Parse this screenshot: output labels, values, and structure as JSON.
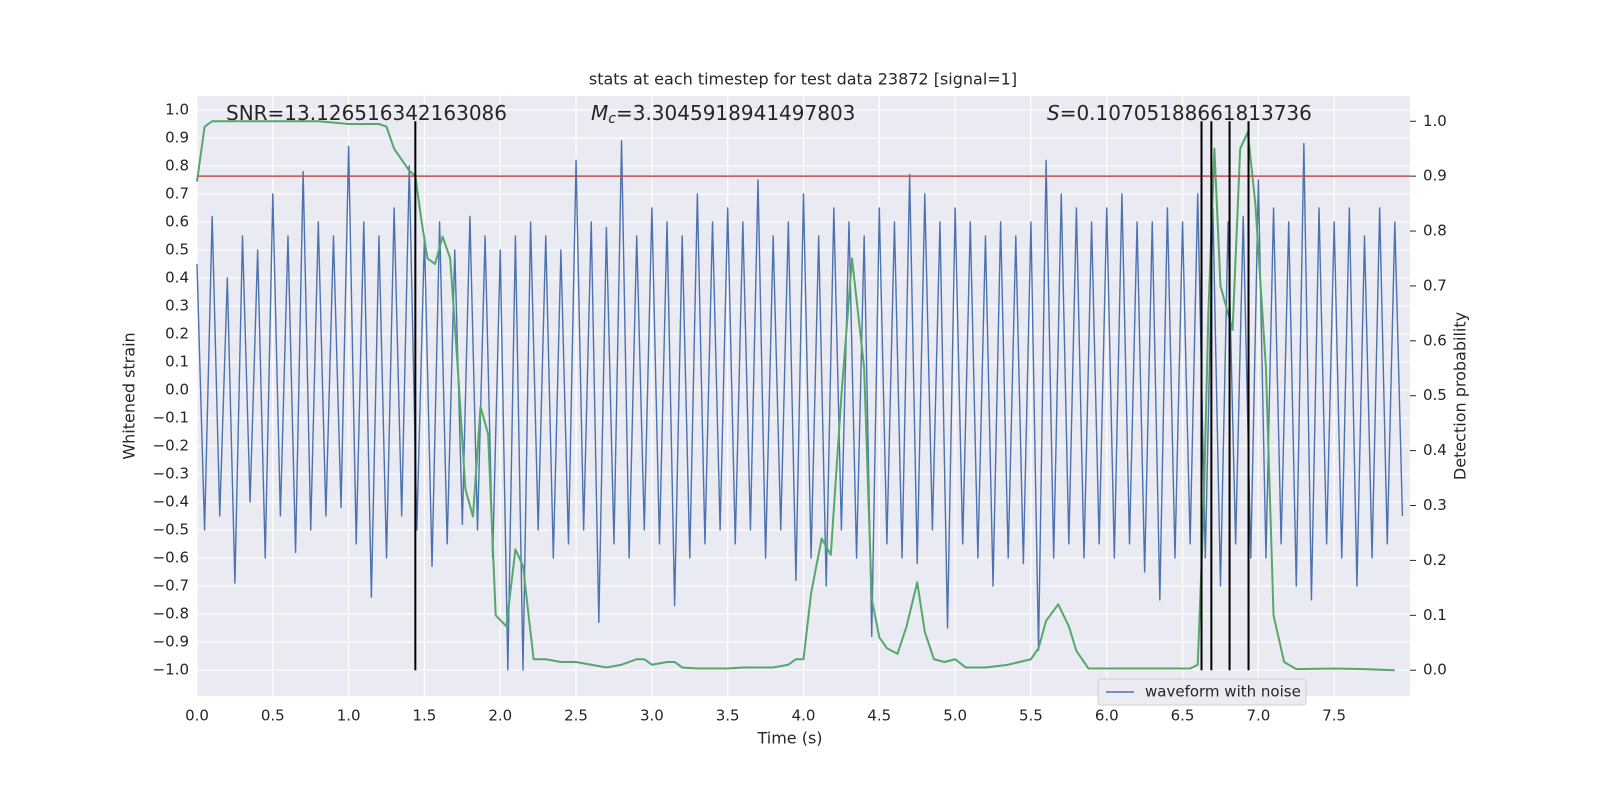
{
  "chart_data": {
    "type": "line",
    "title": "stats at each timestep for test data 23872 [signal=1]",
    "xlabel": "Time (s)",
    "ylabel": "Whitened strain",
    "y2label": "Detection probability",
    "xlim": [
      0,
      8
    ],
    "ylim": [
      -1.093,
      1.05
    ],
    "y2lim": [
      -0.047,
      1.046
    ],
    "xticks": [
      {
        "value": 0,
        "label": "0.0"
      },
      0.5,
      {
        "value": 1,
        "label": "1.0"
      },
      1.5,
      {
        "value": 2,
        "label": "2.0"
      },
      2.5,
      {
        "value": 3,
        "label": "3.0"
      },
      3.5,
      {
        "value": 4,
        "label": "4.0"
      },
      4.5,
      {
        "value": 5,
        "label": "5.0"
      },
      5.5,
      {
        "value": 6,
        "label": "6.0"
      },
      6.5,
      {
        "value": 7,
        "label": "7.0"
      },
      7.5
    ],
    "yticks": [
      {
        "value": -1,
        "label": "−1.0"
      },
      {
        "value": -0.9,
        "label": "−0.9"
      },
      {
        "value": -0.8,
        "label": "−0.8"
      },
      {
        "value": -0.7,
        "label": "−0.7"
      },
      {
        "value": -0.6,
        "label": "−0.6"
      },
      {
        "value": -0.5,
        "label": "−0.5"
      },
      {
        "value": -0.4,
        "label": "−0.4"
      },
      {
        "value": -0.3,
        "label": "−0.3"
      },
      {
        "value": -0.2,
        "label": "−0.2"
      },
      {
        "value": -0.1,
        "label": "−0.1"
      },
      {
        "value": 0,
        "label": "0.0"
      },
      0.1,
      0.2,
      0.3,
      0.4,
      0.5,
      0.6,
      0.7,
      0.8,
      0.9,
      {
        "value": 1,
        "label": "1.0"
      }
    ],
    "y2ticks": [
      {
        "value": 0,
        "label": "0.0"
      },
      0.1,
      0.2,
      0.3,
      0.4,
      0.5,
      0.6,
      0.7,
      0.8,
      0.9,
      {
        "value": 1,
        "label": "1.0"
      }
    ],
    "grid": true,
    "legend": "lower right",
    "annotations": [
      {
        "text": "SNR=13.126516342163086"
      },
      {
        "symbol": "M",
        "subscript": "c",
        "text": "=3.3045918941497803"
      },
      {
        "symbol": "S",
        "text": "=0.10705188661813736"
      }
    ],
    "series": [
      {
        "name": "waveform with noise",
        "color": "#4c72b0",
        "x": [
          0,
          0.05,
          0.1,
          0.15,
          0.2,
          0.25,
          0.3,
          0.35,
          0.4,
          0.45,
          0.5,
          0.55,
          0.6,
          0.65,
          0.7,
          0.75,
          0.8,
          0.85,
          0.9,
          0.95,
          1,
          1.05,
          1.1,
          1.15,
          1.2,
          1.25,
          1.3,
          1.35,
          1.4,
          1.45,
          1.5,
          1.55,
          1.6,
          1.65,
          1.7,
          1.75,
          1.8,
          1.85,
          1.9,
          1.95,
          2,
          2.05,
          2.1,
          2.15,
          2.2,
          2.25,
          2.3,
          2.35,
          2.4,
          2.45,
          2.5,
          2.55,
          2.6,
          2.65,
          2.7,
          2.75,
          2.8,
          2.85,
          2.9,
          2.95,
          3,
          3.05,
          3.1,
          3.15,
          3.2,
          3.25,
          3.3,
          3.35,
          3.4,
          3.45,
          3.5,
          3.55,
          3.6,
          3.65,
          3.7,
          3.75,
          3.8,
          3.85,
          3.9,
          3.95,
          4,
          4.05,
          4.1,
          4.15,
          4.2,
          4.25,
          4.3,
          4.35,
          4.4,
          4.45,
          4.5,
          4.55,
          4.6,
          4.65,
          4.7,
          4.75,
          4.8,
          4.85,
          4.9,
          4.95,
          5,
          5.05,
          5.1,
          5.15,
          5.2,
          5.25,
          5.3,
          5.35,
          5.4,
          5.45,
          5.5,
          5.55,
          5.6,
          5.65,
          5.7,
          5.75,
          5.8,
          5.85,
          5.9,
          5.95,
          6,
          6.05,
          6.1,
          6.15,
          6.2,
          6.25,
          6.3,
          6.35,
          6.4,
          6.45,
          6.5,
          6.55,
          6.6,
          6.65,
          6.7,
          6.75,
          6.8,
          6.85,
          6.9,
          6.95,
          7,
          7.05,
          7.1,
          7.15,
          7.2,
          7.25,
          7.3,
          7.35,
          7.4,
          7.45,
          7.5,
          7.55,
          7.6,
          7.65,
          7.7,
          7.75,
          7.8,
          7.85,
          7.9,
          7.95
        ],
        "values": [
          0.45,
          -0.5,
          0.62,
          -0.45,
          0.4,
          -0.69,
          0.55,
          -0.4,
          0.5,
          -0.6,
          0.7,
          -0.45,
          0.55,
          -0.58,
          0.78,
          -0.5,
          0.6,
          -0.45,
          0.55,
          -0.42,
          0.87,
          -0.55,
          0.6,
          -0.74,
          0.55,
          -0.6,
          0.65,
          -0.45,
          0.8,
          -0.5,
          0.55,
          -0.63,
          0.6,
          -0.55,
          0.5,
          -0.48,
          0.62,
          -0.5,
          0.55,
          -0.6,
          0.5,
          -1.0,
          0.55,
          -1.0,
          0.6,
          -0.5,
          0.55,
          -0.6,
          0.5,
          -0.55,
          0.82,
          -0.5,
          0.6,
          -0.83,
          0.58,
          -0.55,
          0.89,
          -0.6,
          0.55,
          -0.5,
          0.65,
          -0.55,
          0.6,
          -0.77,
          0.55,
          -0.6,
          0.7,
          -0.55,
          0.6,
          -0.5,
          0.65,
          -0.55,
          0.6,
          -0.5,
          0.75,
          -0.6,
          0.55,
          -0.5,
          0.6,
          -0.68,
          0.7,
          -0.6,
          0.55,
          -0.7,
          0.65,
          -0.5,
          0.6,
          -0.6,
          0.55,
          -0.88,
          0.65,
          -0.55,
          0.6,
          -0.6,
          0.77,
          -0.62,
          0.7,
          -0.5,
          0.6,
          -0.85,
          0.65,
          -0.55,
          0.6,
          -0.6,
          0.55,
          -0.7,
          0.6,
          -0.6,
          0.55,
          -0.62,
          0.6,
          -0.93,
          0.82,
          -0.6,
          0.7,
          -0.55,
          0.65,
          -0.6,
          0.6,
          -0.55,
          0.65,
          -0.6,
          0.7,
          -0.55,
          0.6,
          -0.65,
          0.6,
          -0.75,
          0.65,
          -0.6,
          0.6,
          -0.55,
          0.7,
          -0.6,
          0.65,
          -0.7,
          0.6,
          -0.55,
          0.62,
          -0.6,
          0.75,
          -0.6,
          0.65,
          -0.55,
          0.6,
          -0.7,
          0.88,
          -0.75,
          0.65,
          -0.55,
          0.6,
          -0.6,
          0.65,
          -0.7,
          0.55,
          -0.6,
          0.65,
          -0.55,
          0.6,
          -0.45
        ]
      },
      {
        "color": "#55a868",
        "axis": "y2",
        "x": [
          0,
          0.05,
          0.1,
          0.2,
          0.4,
          0.6,
          0.8,
          1.0,
          1.1,
          1.2,
          1.25,
          1.3,
          1.35,
          1.4,
          1.44,
          1.48,
          1.52,
          1.57,
          1.62,
          1.67,
          1.72,
          1.77,
          1.82,
          1.87,
          1.92,
          1.97,
          2.04,
          2.1,
          2.15,
          2.22,
          2.3,
          2.4,
          2.5,
          2.6,
          2.7,
          2.8,
          2.9,
          2.95,
          3.0,
          3.1,
          3.15,
          3.2,
          3.3,
          3.4,
          3.5,
          3.6,
          3.7,
          3.8,
          3.9,
          3.95,
          4.0,
          4.05,
          4.12,
          4.18,
          4.25,
          4.32,
          4.4,
          4.45,
          4.5,
          4.55,
          4.62,
          4.68,
          4.75,
          4.8,
          4.86,
          4.93,
          5.0,
          5.07,
          5.2,
          5.35,
          5.5,
          5.55,
          5.6,
          5.68,
          5.75,
          5.8,
          5.88,
          6.0,
          6.3,
          6.55,
          6.6,
          6.64,
          6.67,
          6.71,
          6.75,
          6.83,
          6.88,
          6.93,
          6.98,
          7.05,
          7.1,
          7.17,
          7.25,
          7.5,
          7.7,
          7.9
        ],
        "values": [
          0.89,
          0.99,
          1.0,
          1.0,
          1.0,
          1.0,
          1.0,
          0.995,
          0.995,
          0.995,
          0.99,
          0.95,
          0.93,
          0.91,
          0.9,
          0.82,
          0.75,
          0.74,
          0.79,
          0.75,
          0.55,
          0.33,
          0.28,
          0.48,
          0.43,
          0.1,
          0.08,
          0.22,
          0.19,
          0.02,
          0.02,
          0.015,
          0.015,
          0.01,
          0.005,
          0.01,
          0.02,
          0.02,
          0.01,
          0.015,
          0.015,
          0.005,
          0.003,
          0.003,
          0.003,
          0.005,
          0.005,
          0.005,
          0.01,
          0.02,
          0.02,
          0.14,
          0.24,
          0.21,
          0.5,
          0.75,
          0.55,
          0.13,
          0.06,
          0.04,
          0.03,
          0.08,
          0.16,
          0.07,
          0.02,
          0.015,
          0.02,
          0.005,
          0.005,
          0.01,
          0.02,
          0.04,
          0.09,
          0.12,
          0.08,
          0.035,
          0.003,
          0.003,
          0.003,
          0.003,
          0.01,
          0.3,
          0.65,
          0.95,
          0.7,
          0.62,
          0.95,
          0.98,
          0.85,
          0.55,
          0.1,
          0.015,
          0.002,
          0.003,
          0.002,
          0.0
        ]
      }
    ],
    "hlines": [
      {
        "value": 0.9,
        "axis": "y2",
        "color": "#c44e52"
      }
    ],
    "vlines": {
      "x": [
        1.44,
        6.625,
        6.69,
        6.81,
        6.935
      ],
      "ymin": 0,
      "ymax": 1,
      "axis": "y2",
      "color": "#000000"
    }
  }
}
